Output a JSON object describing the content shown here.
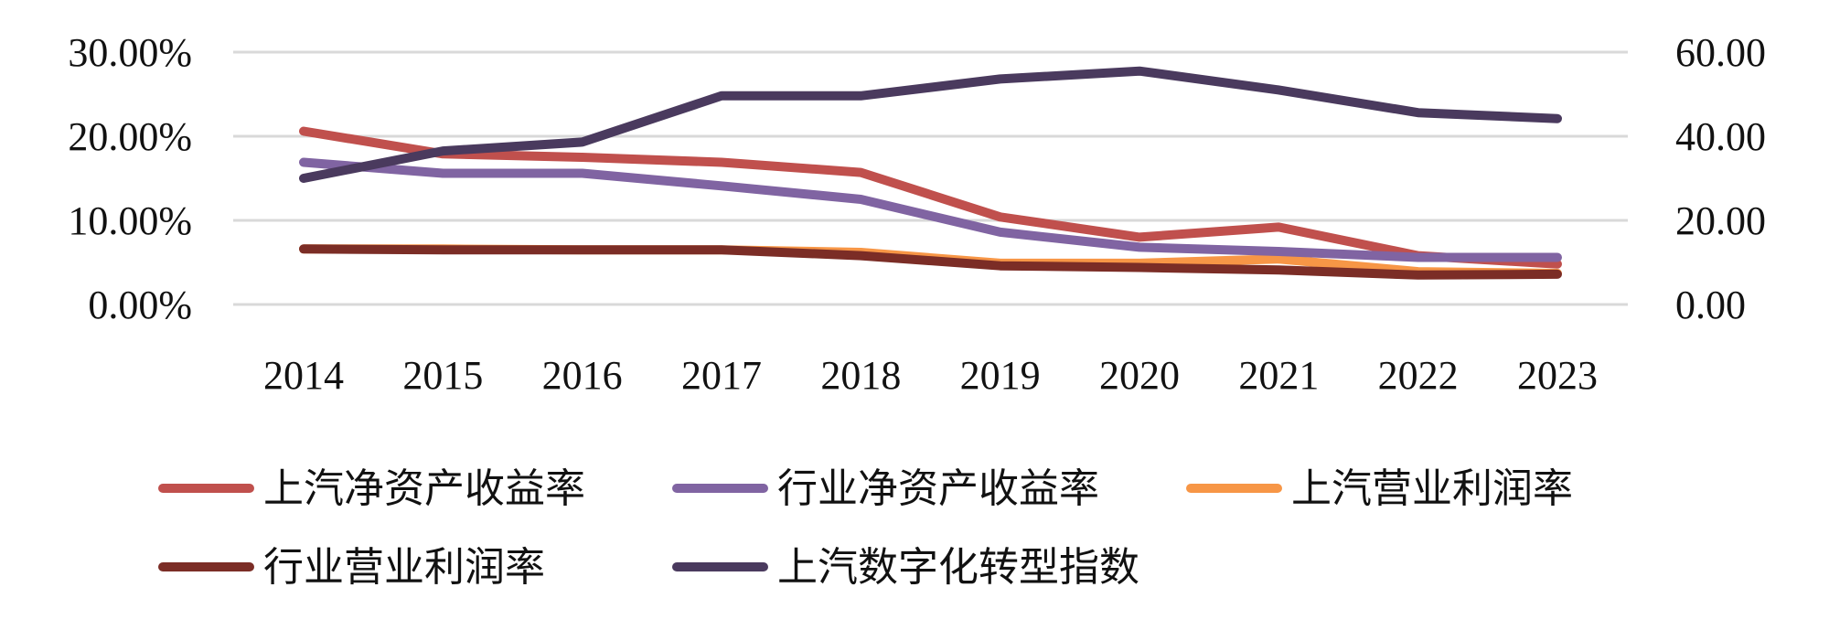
{
  "chart_data": {
    "type": "line",
    "title": "",
    "xlabel": "",
    "ylabel": "",
    "categories": [
      "2014",
      "2015",
      "2016",
      "2017",
      "2018",
      "2019",
      "2020",
      "2021",
      "2022",
      "2023"
    ],
    "y_left": {
      "ylim": [
        0,
        30
      ],
      "ticks": [
        0,
        10,
        20,
        30
      ],
      "tick_labels": [
        "0.00%",
        "10.00%",
        "20.00%",
        "30.00%"
      ]
    },
    "y_right": {
      "ylim": [
        0,
        60
      ],
      "ticks": [
        0,
        20,
        40,
        60
      ],
      "tick_labels": [
        "0.00",
        "20.00",
        "40.00",
        "60.00"
      ]
    },
    "grid": true,
    "legend_position": "bottom",
    "series": [
      {
        "name": "上汽净资产收益率",
        "axis": "left",
        "color": "#C0504D",
        "values": [
          20.6,
          17.9,
          17.5,
          16.9,
          15.7,
          10.4,
          8.0,
          9.2,
          5.8,
          4.8
        ]
      },
      {
        "name": "行业净资产收益率",
        "axis": "left",
        "color": "#8064A2",
        "values": [
          16.9,
          15.6,
          15.6,
          14.1,
          12.5,
          8.6,
          6.8,
          6.3,
          5.6,
          5.6
        ]
      },
      {
        "name": "上汽营业利润率",
        "axis": "left",
        "color": "#F79646",
        "values": [
          6.6,
          6.6,
          6.5,
          6.5,
          6.2,
          4.9,
          4.9,
          5.4,
          3.9,
          3.7
        ]
      },
      {
        "name": "行业营业利润率",
        "axis": "left",
        "color": "#7B2D26",
        "values": [
          6.6,
          6.5,
          6.5,
          6.5,
          5.8,
          4.6,
          4.4,
          4.1,
          3.5,
          3.6
        ]
      },
      {
        "name": "上汽数字化转型指数",
        "axis": "right",
        "color": "#4A3A5E",
        "values": [
          30.0,
          36.5,
          38.6,
          49.6,
          49.6,
          53.6,
          55.5,
          51.0,
          45.6,
          44.2
        ]
      }
    ]
  }
}
